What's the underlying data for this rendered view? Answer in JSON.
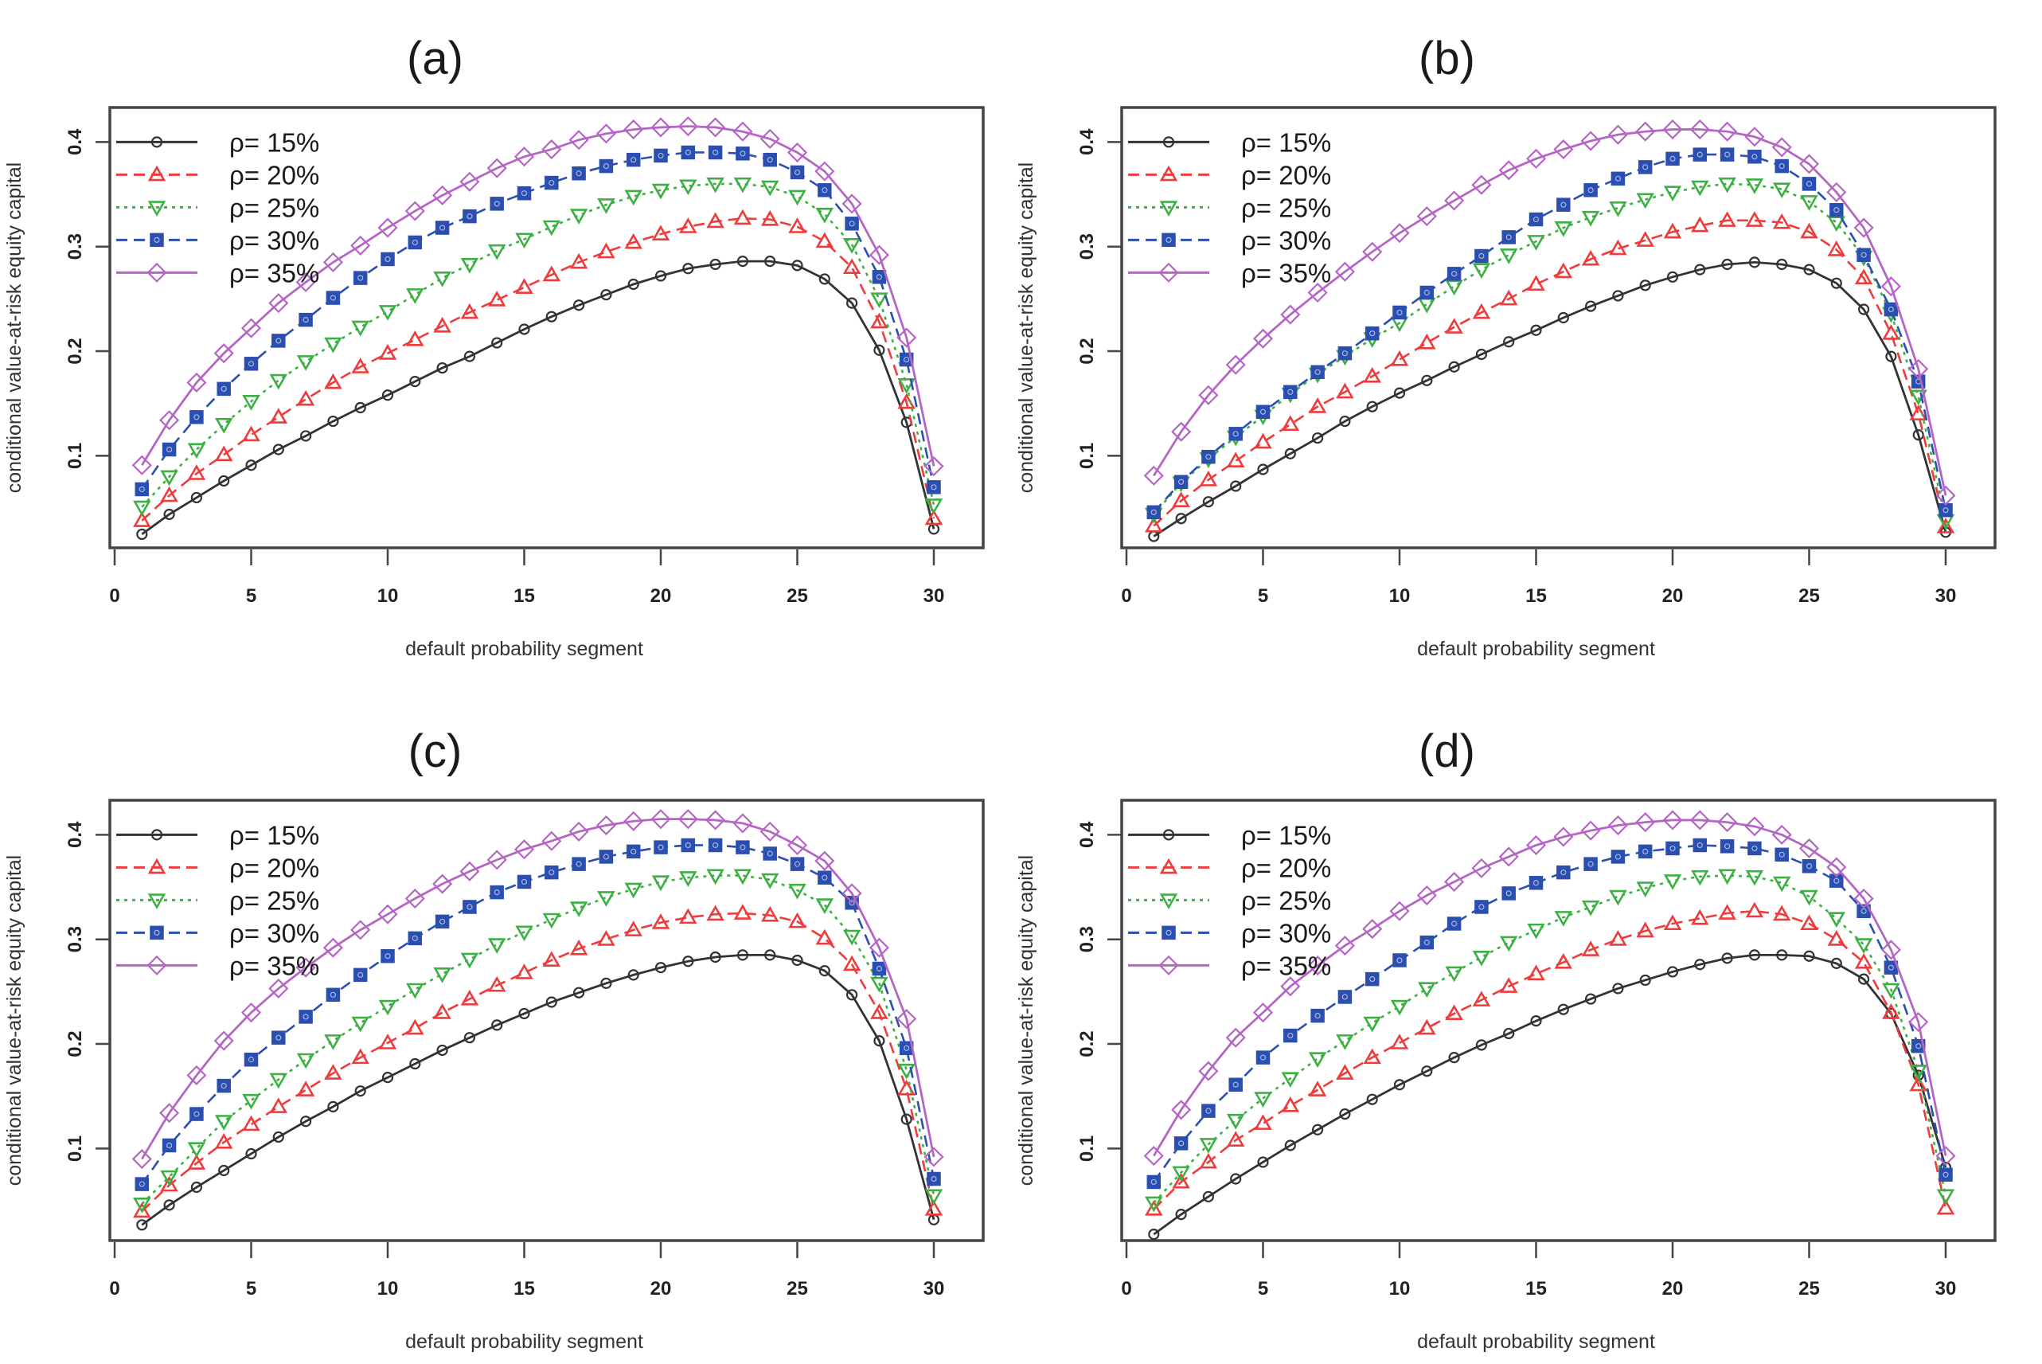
{
  "chart_data": [
    {
      "type": "line",
      "panel": "a",
      "title": "(a)",
      "xlabel": "default probability segment",
      "ylabel": "conditional value-at-risk equity capital",
      "xlim": [
        0,
        30
      ],
      "ylim": [
        0.012,
        0.433
      ],
      "xticks": [
        0,
        5,
        10,
        15,
        20,
        25,
        30
      ],
      "yticks": [
        0.1,
        0.2,
        0.3,
        0.4
      ],
      "grid": false,
      "legend_position": "top-left",
      "x": [
        1,
        2,
        3,
        4,
        5,
        6,
        7,
        8,
        9,
        10,
        11,
        12,
        13,
        14,
        15,
        16,
        17,
        18,
        19,
        20,
        21,
        22,
        23,
        24,
        25,
        26,
        27,
        28,
        29,
        30
      ],
      "series": [
        {
          "name": "ρ= 15%",
          "color": "#333333",
          "marker": "circle",
          "dash": "solid",
          "values": [
            0.025,
            0.044,
            0.06,
            0.076,
            0.091,
            0.106,
            0.119,
            0.133,
            0.146,
            0.158,
            0.171,
            0.184,
            0.195,
            0.208,
            0.221,
            0.233,
            0.244,
            0.254,
            0.264,
            0.272,
            0.279,
            0.283,
            0.286,
            0.286,
            0.282,
            0.269,
            0.246,
            0.201,
            0.132,
            0.03
          ]
        },
        {
          "name": "ρ= 20%",
          "color": "#ee3b3b",
          "marker": "triangle-up",
          "dash": "dashed",
          "values": [
            0.038,
            0.062,
            0.083,
            0.101,
            0.12,
            0.137,
            0.154,
            0.17,
            0.185,
            0.198,
            0.211,
            0.224,
            0.237,
            0.249,
            0.261,
            0.273,
            0.285,
            0.295,
            0.304,
            0.312,
            0.319,
            0.324,
            0.327,
            0.326,
            0.319,
            0.305,
            0.28,
            0.228,
            0.151,
            0.04
          ]
        },
        {
          "name": "ρ= 25%",
          "color": "#3cb043",
          "marker": "triangle-down",
          "dash": "dotted",
          "values": [
            0.051,
            0.08,
            0.106,
            0.13,
            0.152,
            0.172,
            0.19,
            0.207,
            0.223,
            0.238,
            0.254,
            0.27,
            0.283,
            0.296,
            0.307,
            0.319,
            0.33,
            0.34,
            0.348,
            0.354,
            0.358,
            0.36,
            0.36,
            0.357,
            0.348,
            0.331,
            0.302,
            0.25,
            0.168,
            0.053
          ]
        },
        {
          "name": "ρ= 30%",
          "color": "#2a4fb0",
          "marker": "square",
          "dash": "dashed",
          "values": [
            0.068,
            0.106,
            0.137,
            0.164,
            0.188,
            0.21,
            0.23,
            0.251,
            0.27,
            0.288,
            0.304,
            0.318,
            0.329,
            0.341,
            0.351,
            0.361,
            0.37,
            0.377,
            0.383,
            0.387,
            0.39,
            0.39,
            0.389,
            0.383,
            0.371,
            0.354,
            0.322,
            0.271,
            0.192,
            0.07
          ]
        },
        {
          "name": "ρ= 35%",
          "color": "#b565c4",
          "marker": "diamond",
          "dash": "solid",
          "values": [
            0.091,
            0.134,
            0.17,
            0.198,
            0.222,
            0.246,
            0.266,
            0.285,
            0.301,
            0.318,
            0.334,
            0.349,
            0.362,
            0.375,
            0.386,
            0.393,
            0.402,
            0.408,
            0.412,
            0.414,
            0.415,
            0.414,
            0.41,
            0.403,
            0.39,
            0.372,
            0.341,
            0.292,
            0.213,
            0.09
          ]
        }
      ]
    },
    {
      "type": "line",
      "panel": "b",
      "title": "(b)",
      "xlabel": "default probability segment",
      "ylabel": "conditional value-at-risk equity capital",
      "xlim": [
        0,
        30
      ],
      "ylim": [
        0.012,
        0.433
      ],
      "xticks": [
        0,
        5,
        10,
        15,
        20,
        25,
        30
      ],
      "yticks": [
        0.1,
        0.2,
        0.3,
        0.4
      ],
      "grid": false,
      "legend_position": "top-left",
      "x": [
        1,
        2,
        3,
        4,
        5,
        6,
        7,
        8,
        9,
        10,
        11,
        12,
        13,
        14,
        15,
        16,
        17,
        18,
        19,
        20,
        21,
        22,
        23,
        24,
        25,
        26,
        27,
        28,
        29,
        30
      ],
      "series": [
        {
          "name": "ρ= 15%",
          "color": "#333333",
          "marker": "circle",
          "dash": "solid",
          "values": [
            0.023,
            0.04,
            0.056,
            0.071,
            0.087,
            0.102,
            0.117,
            0.133,
            0.147,
            0.16,
            0.172,
            0.185,
            0.197,
            0.209,
            0.22,
            0.232,
            0.243,
            0.253,
            0.263,
            0.271,
            0.278,
            0.283,
            0.285,
            0.283,
            0.278,
            0.265,
            0.24,
            0.195,
            0.12,
            0.027
          ]
        },
        {
          "name": "ρ= 20%",
          "color": "#ee3b3b",
          "marker": "triangle-up",
          "dash": "dashed",
          "values": [
            0.033,
            0.057,
            0.077,
            0.095,
            0.113,
            0.13,
            0.147,
            0.161,
            0.176,
            0.192,
            0.208,
            0.223,
            0.237,
            0.25,
            0.264,
            0.276,
            0.288,
            0.298,
            0.306,
            0.314,
            0.32,
            0.325,
            0.325,
            0.323,
            0.314,
            0.297,
            0.27,
            0.217,
            0.14,
            0.032
          ]
        },
        {
          "name": "ρ= 25%",
          "color": "#3cb043",
          "marker": "triangle-down",
          "dash": "dotted",
          "values": [
            0.044,
            0.074,
            0.097,
            0.118,
            0.138,
            0.159,
            0.178,
            0.195,
            0.212,
            0.227,
            0.245,
            0.262,
            0.278,
            0.292,
            0.305,
            0.318,
            0.328,
            0.337,
            0.345,
            0.352,
            0.357,
            0.36,
            0.359,
            0.355,
            0.343,
            0.323,
            0.29,
            0.236,
            0.157,
            0.038
          ]
        },
        {
          "name": "ρ= 30%",
          "color": "#2a4fb0",
          "marker": "square",
          "dash": "dashed",
          "values": [
            0.046,
            0.075,
            0.099,
            0.121,
            0.142,
            0.161,
            0.18,
            0.198,
            0.217,
            0.237,
            0.256,
            0.274,
            0.291,
            0.309,
            0.326,
            0.34,
            0.354,
            0.365,
            0.376,
            0.384,
            0.388,
            0.388,
            0.386,
            0.377,
            0.36,
            0.335,
            0.292,
            0.24,
            0.171,
            0.048
          ]
        },
        {
          "name": "ρ= 35%",
          "color": "#b565c4",
          "marker": "diamond",
          "dash": "solid",
          "values": [
            0.081,
            0.123,
            0.158,
            0.187,
            0.212,
            0.235,
            0.256,
            0.276,
            0.295,
            0.313,
            0.329,
            0.344,
            0.359,
            0.373,
            0.384,
            0.393,
            0.401,
            0.407,
            0.41,
            0.412,
            0.412,
            0.41,
            0.405,
            0.395,
            0.379,
            0.352,
            0.318,
            0.262,
            0.183,
            0.062
          ]
        }
      ]
    },
    {
      "type": "line",
      "panel": "c",
      "title": "(c)",
      "xlabel": "default probability segment",
      "ylabel": "conditional value-at-risk equity capital",
      "xlim": [
        0,
        30
      ],
      "ylim": [
        0.012,
        0.433
      ],
      "xticks": [
        0,
        5,
        10,
        15,
        20,
        25,
        30
      ],
      "yticks": [
        0.1,
        0.2,
        0.3,
        0.4
      ],
      "grid": false,
      "legend_position": "top-left",
      "x": [
        1,
        2,
        3,
        4,
        5,
        6,
        7,
        8,
        9,
        10,
        11,
        12,
        13,
        14,
        15,
        16,
        17,
        18,
        19,
        20,
        21,
        22,
        23,
        24,
        25,
        26,
        27,
        28,
        29,
        30
      ],
      "series": [
        {
          "name": "ρ= 15%",
          "color": "#333333",
          "marker": "circle",
          "dash": "solid",
          "values": [
            0.027,
            0.046,
            0.063,
            0.079,
            0.095,
            0.111,
            0.126,
            0.14,
            0.155,
            0.168,
            0.181,
            0.194,
            0.206,
            0.218,
            0.229,
            0.24,
            0.249,
            0.258,
            0.266,
            0.273,
            0.279,
            0.283,
            0.285,
            0.285,
            0.28,
            0.27,
            0.247,
            0.203,
            0.128,
            0.032
          ]
        },
        {
          "name": "ρ= 20%",
          "color": "#ee3b3b",
          "marker": "triangle-up",
          "dash": "dashed",
          "values": [
            0.04,
            0.065,
            0.086,
            0.106,
            0.123,
            0.14,
            0.156,
            0.172,
            0.187,
            0.201,
            0.215,
            0.23,
            0.243,
            0.256,
            0.268,
            0.28,
            0.291,
            0.3,
            0.309,
            0.316,
            0.321,
            0.324,
            0.325,
            0.323,
            0.317,
            0.301,
            0.276,
            0.23,
            0.157,
            0.042
          ]
        },
        {
          "name": "ρ= 25%",
          "color": "#3cb043",
          "marker": "triangle-down",
          "dash": "dotted",
          "values": [
            0.047,
            0.073,
            0.1,
            0.126,
            0.146,
            0.166,
            0.185,
            0.203,
            0.22,
            0.236,
            0.252,
            0.267,
            0.281,
            0.295,
            0.307,
            0.319,
            0.33,
            0.34,
            0.348,
            0.355,
            0.359,
            0.361,
            0.361,
            0.357,
            0.347,
            0.333,
            0.303,
            0.258,
            0.175,
            0.055
          ]
        },
        {
          "name": "ρ= 30%",
          "color": "#2a4fb0",
          "marker": "square",
          "dash": "dashed",
          "values": [
            0.066,
            0.103,
            0.133,
            0.16,
            0.185,
            0.206,
            0.226,
            0.247,
            0.266,
            0.284,
            0.301,
            0.317,
            0.331,
            0.345,
            0.355,
            0.364,
            0.372,
            0.379,
            0.384,
            0.388,
            0.39,
            0.39,
            0.388,
            0.382,
            0.372,
            0.359,
            0.335,
            0.272,
            0.196,
            0.071
          ]
        },
        {
          "name": "ρ= 35%",
          "color": "#b565c4",
          "marker": "diamond",
          "dash": "solid",
          "values": [
            0.09,
            0.134,
            0.17,
            0.203,
            0.23,
            0.253,
            0.273,
            0.292,
            0.309,
            0.324,
            0.339,
            0.353,
            0.365,
            0.376,
            0.386,
            0.394,
            0.403,
            0.409,
            0.413,
            0.415,
            0.415,
            0.414,
            0.411,
            0.403,
            0.39,
            0.375,
            0.344,
            0.292,
            0.224,
            0.092
          ]
        }
      ]
    },
    {
      "type": "line",
      "panel": "d",
      "title": "(d)",
      "xlabel": "default probability segment",
      "ylabel": "conditional value-at-risk equity capital",
      "xlim": [
        0,
        30
      ],
      "ylim": [
        0.012,
        0.433
      ],
      "xticks": [
        0,
        5,
        10,
        15,
        20,
        25,
        30
      ],
      "yticks": [
        0.1,
        0.2,
        0.3,
        0.4
      ],
      "grid": false,
      "legend_position": "top-left",
      "x": [
        1,
        2,
        3,
        4,
        5,
        6,
        7,
        8,
        9,
        10,
        11,
        12,
        13,
        14,
        15,
        16,
        17,
        18,
        19,
        20,
        21,
        22,
        23,
        24,
        25,
        26,
        27,
        28,
        29,
        30
      ],
      "series": [
        {
          "name": "ρ= 15%",
          "color": "#333333",
          "marker": "circle",
          "dash": "solid",
          "values": [
            0.018,
            0.037,
            0.054,
            0.071,
            0.087,
            0.103,
            0.118,
            0.133,
            0.147,
            0.161,
            0.174,
            0.187,
            0.199,
            0.21,
            0.222,
            0.233,
            0.243,
            0.253,
            0.261,
            0.269,
            0.276,
            0.282,
            0.285,
            0.285,
            0.284,
            0.277,
            0.262,
            0.229,
            0.17,
            0.082
          ]
        },
        {
          "name": "ρ= 20%",
          "color": "#ee3b3b",
          "marker": "triangle-up",
          "dash": "dashed",
          "values": [
            0.042,
            0.068,
            0.087,
            0.108,
            0.124,
            0.141,
            0.156,
            0.172,
            0.187,
            0.201,
            0.215,
            0.229,
            0.242,
            0.255,
            0.267,
            0.278,
            0.29,
            0.3,
            0.308,
            0.315,
            0.32,
            0.325,
            0.327,
            0.324,
            0.315,
            0.3,
            0.278,
            0.23,
            0.161,
            0.043
          ]
        },
        {
          "name": "ρ= 25%",
          "color": "#3cb043",
          "marker": "triangle-down",
          "dash": "dotted",
          "values": [
            0.048,
            0.077,
            0.104,
            0.127,
            0.148,
            0.167,
            0.186,
            0.203,
            0.22,
            0.236,
            0.253,
            0.268,
            0.283,
            0.297,
            0.309,
            0.321,
            0.331,
            0.341,
            0.349,
            0.356,
            0.36,
            0.361,
            0.36,
            0.354,
            0.341,
            0.32,
            0.295,
            0.252,
            0.174,
            0.055
          ]
        },
        {
          "name": "ρ= 30%",
          "color": "#2a4fb0",
          "marker": "square",
          "dash": "dashed",
          "values": [
            0.068,
            0.105,
            0.136,
            0.161,
            0.187,
            0.208,
            0.227,
            0.245,
            0.262,
            0.28,
            0.297,
            0.315,
            0.331,
            0.344,
            0.354,
            0.364,
            0.372,
            0.379,
            0.384,
            0.387,
            0.39,
            0.389,
            0.387,
            0.381,
            0.37,
            0.356,
            0.327,
            0.273,
            0.198,
            0.075
          ]
        },
        {
          "name": "ρ= 35%",
          "color": "#b565c4",
          "marker": "diamond",
          "dash": "solid",
          "values": [
            0.093,
            0.137,
            0.174,
            0.206,
            0.23,
            0.255,
            0.275,
            0.294,
            0.31,
            0.327,
            0.342,
            0.355,
            0.368,
            0.379,
            0.39,
            0.398,
            0.404,
            0.409,
            0.412,
            0.414,
            0.414,
            0.412,
            0.408,
            0.4,
            0.387,
            0.369,
            0.339,
            0.29,
            0.221,
            0.093
          ]
        }
      ]
    }
  ]
}
